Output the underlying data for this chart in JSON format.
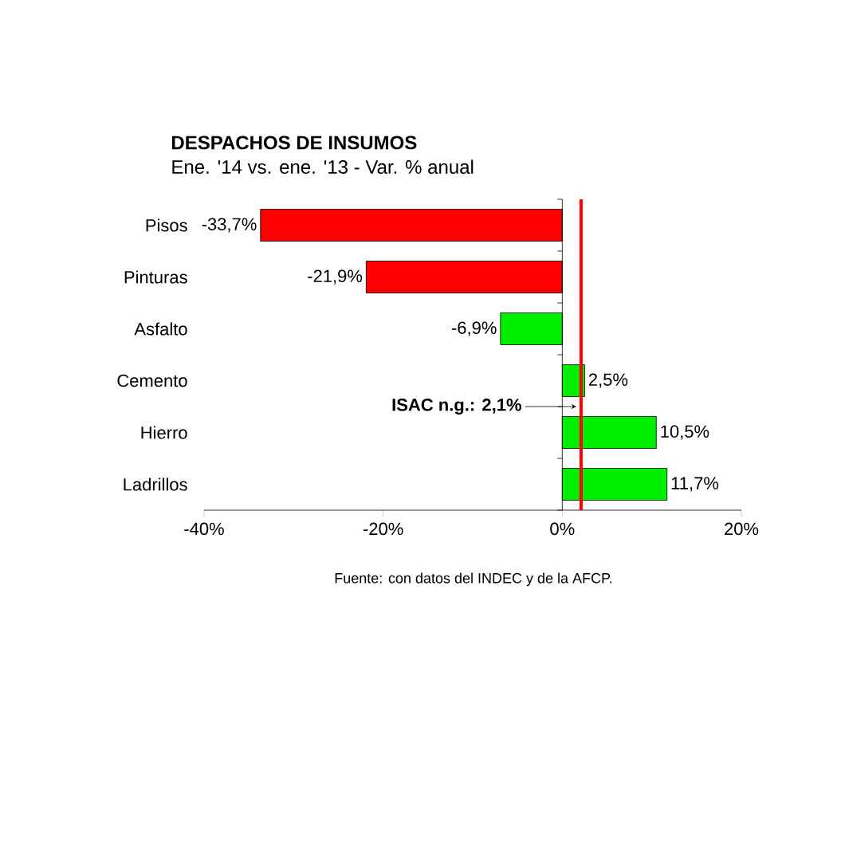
{
  "chart_data": {
    "type": "bar",
    "orientation": "horizontal",
    "title": "DESPACHOS DE INSUMOS",
    "subtitle": "Ene. '14 vs. ene. '13 - Var. % anual",
    "categories": [
      "Pisos",
      "Pinturas",
      "Asfalto",
      "Cemento",
      "Hierro",
      "Ladrillos"
    ],
    "values": [
      -33.7,
      -21.9,
      -6.9,
      2.5,
      10.5,
      11.7
    ],
    "colors": [
      "#ff0000",
      "#ff0000",
      "#00ee00",
      "#00ee00",
      "#00ee00",
      "#00ee00"
    ],
    "value_labels": [
      "-33,7%",
      "-21,9%",
      "-6,9%",
      "2,5%",
      "10,5%",
      "11,7%"
    ],
    "xlim": [
      -40,
      20
    ],
    "xticks": [
      {
        "value": -40,
        "label": "-40%"
      },
      {
        "value": -20,
        "label": "-20%"
      },
      {
        "value": 0,
        "label": "0%"
      },
      {
        "value": 20,
        "label": "20%"
      }
    ],
    "ref_lines": [
      {
        "axis": "x",
        "value": 2.1,
        "label": "ISAC n.g.: 2,1%",
        "color": "#ff0000"
      }
    ],
    "annotations": [
      "Fuente: con datos del INDEC y de la AFCP."
    ]
  }
}
